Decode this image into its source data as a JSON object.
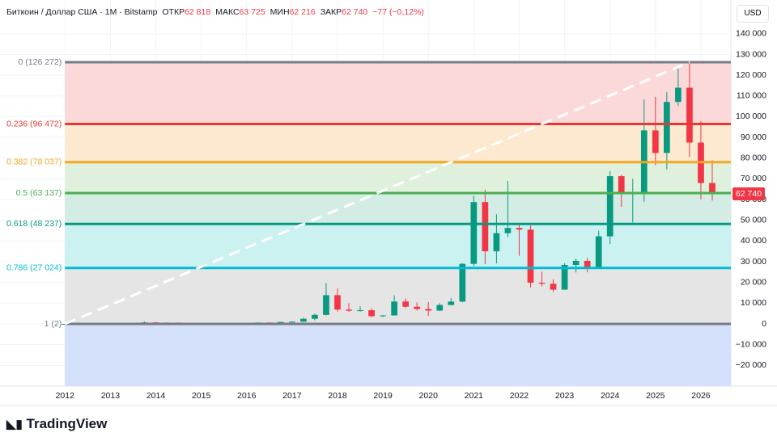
{
  "header": {
    "title": "Биткоин / Доллар США · 1М · Bitstamp",
    "open_label": "ОТКР",
    "open": "62 818",
    "high_label": "МАКС",
    "high": "63 725",
    "low_label": "МИН",
    "low": "62 216",
    "close_label": "ЗАКР",
    "close": "62 740",
    "change": "−77 (−0,12%)",
    "currency": "USD"
  },
  "logo": "TradingView",
  "chart_data": {
    "type": "candlestick",
    "up_color": "#089981",
    "down_color": "#f23645",
    "grid": true,
    "x": [
      2012,
      2012.25,
      2012.5,
      2012.75,
      2013,
      2013.25,
      2013.5,
      2013.75,
      2014,
      2014.25,
      2014.5,
      2014.75,
      2015,
      2015.25,
      2015.5,
      2015.75,
      2016,
      2016.25,
      2016.5,
      2016.75,
      2017,
      2017.25,
      2017.5,
      2017.75,
      2018,
      2018.25,
      2018.5,
      2018.75,
      2019,
      2019.25,
      2019.5,
      2019.75,
      2020,
      2020.25,
      2020.5,
      2020.75,
      2021,
      2021.25,
      2021.5,
      2021.75,
      2022,
      2022.25,
      2022.5,
      2022.75,
      2023,
      2023.25,
      2023.5,
      2023.75,
      2024,
      2024.25,
      2024.5,
      2024.75,
      2025,
      2025.25,
      2025.5,
      2025.75,
      2026,
      2026.25
    ],
    "open": [
      5,
      5,
      7,
      12,
      13,
      93,
      97,
      127,
      750,
      450,
      640,
      390,
      320,
      245,
      265,
      235,
      430,
      415,
      675,
      610,
      965,
      1080,
      2480,
      4360,
      13880,
      6930,
      6390,
      6630,
      3740,
      4100,
      10800,
      8300,
      7200,
      6440,
      9140,
      10780,
      28990,
      58800,
      35040,
      43800,
      46300,
      45500,
      19900,
      19400,
      16540,
      28470,
      30450,
      26960,
      42270,
      71300,
      62700,
      63300,
      93400,
      82500,
      107100,
      114000,
      87500,
      68000
    ],
    "high": [
      7,
      7,
      13,
      14,
      266,
      130,
      140,
      1150,
      1000,
      680,
      650,
      480,
      320,
      270,
      320,
      500,
      440,
      780,
      680,
      980,
      1300,
      3000,
      5000,
      19700,
      17200,
      9990,
      8500,
      7500,
      4200,
      13800,
      12300,
      10400,
      10500,
      10000,
      12470,
      29300,
      61800,
      64800,
      52900,
      69000,
      48200,
      47500,
      25200,
      21500,
      29200,
      31400,
      31800,
      45000,
      73800,
      72000,
      70000,
      108300,
      109600,
      111900,
      124500,
      126272,
      97900,
      79000
    ],
    "low": [
      4,
      5,
      7,
      10,
      13,
      65,
      90,
      120,
      340,
      430,
      380,
      300,
      170,
      220,
      210,
      235,
      360,
      415,
      530,
      600,
      750,
      1080,
      1800,
      4100,
      6000,
      5800,
      5900,
      3150,
      3350,
      4100,
      7700,
      6500,
      3850,
      6200,
      8900,
      10400,
      28000,
      28800,
      29300,
      42000,
      32900,
      17600,
      18100,
      15500,
      16500,
      24800,
      24900,
      26600,
      38500,
      56500,
      49000,
      58900,
      76600,
      74500,
      105300,
      80600,
      60100,
      59500
    ],
    "close": [
      5,
      7,
      12,
      13,
      93,
      97,
      127,
      750,
      450,
      640,
      390,
      320,
      245,
      265,
      235,
      430,
      415,
      675,
      610,
      965,
      1080,
      2480,
      4360,
      13880,
      6930,
      6390,
      6630,
      3740,
      4100,
      10800,
      8300,
      7200,
      6440,
      9140,
      10780,
      28990,
      58800,
      35040,
      43800,
      46300,
      45500,
      19900,
      19400,
      16540,
      28470,
      30450,
      26960,
      42270,
      71300,
      62700,
      63300,
      93400,
      82500,
      107100,
      114000,
      87500,
      68000,
      62740
    ],
    "xlim": [
      2010.57,
      2026.66
    ],
    "xticks": [
      2012,
      2013,
      2014,
      2015,
      2016,
      2017,
      2018,
      2019,
      2020,
      2021,
      2022,
      2023,
      2024,
      2025,
      2026
    ],
    "ylim": [
      -30000,
      145000
    ],
    "yticks": [
      {
        "value": 140000,
        "label": "140 000"
      },
      {
        "value": 130000,
        "label": "130 000"
      },
      {
        "value": 120000,
        "label": "120 000"
      },
      {
        "value": 110000,
        "label": "110 000"
      },
      {
        "value": 100000,
        "label": "100 000"
      },
      {
        "value": 90000,
        "label": "90 000"
      },
      {
        "value": 80000,
        "label": "80 000"
      },
      {
        "value": 70000,
        "label": "70 000"
      },
      {
        "value": 60000,
        "label": "60 000"
      },
      {
        "value": 50000,
        "label": "50 000"
      },
      {
        "value": 40000,
        "label": "40 000"
      },
      {
        "value": 30000,
        "label": "30 000"
      },
      {
        "value": 20000,
        "label": "20 000"
      },
      {
        "value": 10000,
        "label": "10 000"
      },
      0,
      {
        "value": -10000,
        "label": "−10 000"
      },
      {
        "value": -20000,
        "label": "−20 000"
      }
    ],
    "last_price": {
      "value": 62740,
      "label": "62 740",
      "color": "#f23645"
    },
    "fib_levels": [
      {
        "value": 126272,
        "label": "0 (126 272)",
        "color": "#787b86",
        "fill": "#fbd9d9"
      },
      {
        "value": 96472,
        "label": "0.236 (96 472)",
        "color": "#e53935",
        "fill": "#fde9d0"
      },
      {
        "value": 78037,
        "label": "0.382 (78 037)",
        "color": "#f5a623",
        "fill": "#dff1dc"
      },
      {
        "value": 63137,
        "label": "0.5 (63 137)",
        "color": "#4caf50",
        "fill": "#d3ece4"
      },
      {
        "value": 48237,
        "label": "0.618 (48 237)",
        "color": "#089981",
        "fill": "#cbf1f1"
      },
      {
        "value": 27024,
        "label": "0.786 (27 024)",
        "color": "#00bcd4",
        "fill": "#e5e5e5"
      },
      {
        "value": 2,
        "label": "1 (2)",
        "color": "#787b86",
        "fill": "#d5e1fb"
      }
    ],
    "fib_x_end": 2026.66,
    "trendline": {
      "x": [
        2012,
        2025.75
      ],
      "y": [
        2,
        126272
      ]
    }
  }
}
